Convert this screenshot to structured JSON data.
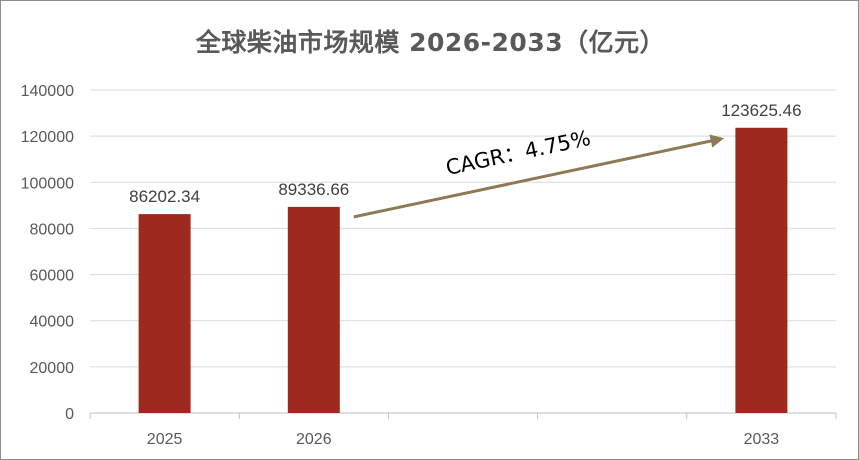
{
  "chart_data": {
    "type": "bar",
    "title": "全球柴油市场规模 2026-2033（亿元）",
    "categories": [
      "2025",
      "2026",
      "2033"
    ],
    "values": [
      86202.34,
      89336.66,
      123625.46
    ],
    "value_labels": [
      "86202.34",
      "89336.66",
      "123625.46"
    ],
    "ylim": [
      0,
      140000
    ],
    "y_ticks": [
      "0",
      "20000",
      "40000",
      "60000",
      "80000",
      "100000",
      "120000",
      "140000"
    ],
    "grid": true,
    "bar_color": "#9e2a1f",
    "annotation": {
      "text": "CAGR：4.75%",
      "arrow_from": "2026",
      "arrow_to": "2033",
      "color": "#8c7a55"
    }
  }
}
